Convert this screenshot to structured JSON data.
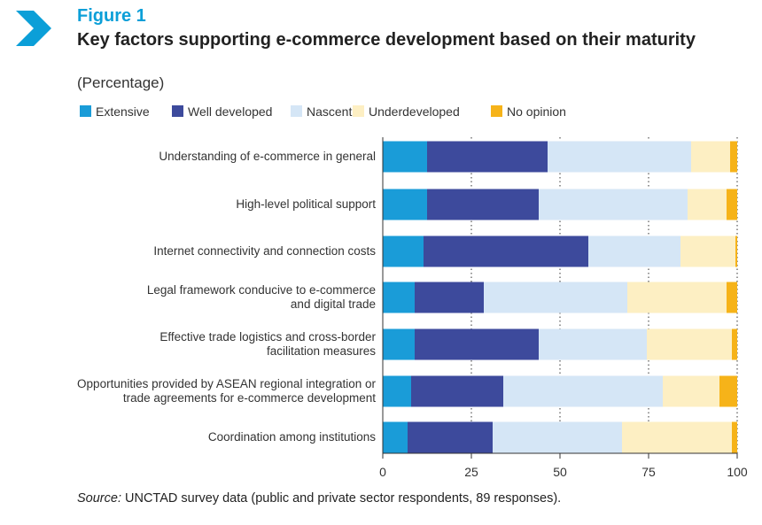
{
  "figure": {
    "label": "Figure 1",
    "title": "Key factors supporting e-commerce development based on their maturity",
    "subtitle": "(Percentage)",
    "source_prefix": "Source:",
    "source_text": " UNCTAD survey data (public and private sector respondents, 89 responses)."
  },
  "colors": {
    "Extensive": "#1a9cd8",
    "Well developed": "#3d4a9c",
    "Nascent": "#d5e6f6",
    "Underdeveloped": "#fdefc3",
    "No opinion": "#f6b319",
    "accent": "#0b9fd8"
  },
  "chart_data": {
    "type": "bar",
    "orientation": "horizontal",
    "stacked": true,
    "title": "Key factors supporting e-commerce development based on their maturity",
    "subtitle": "(Percentage)",
    "xlabel": "",
    "ylabel": "",
    "xlim": [
      0,
      100
    ],
    "xticks": [
      0,
      25,
      50,
      75,
      100
    ],
    "grid": "vertical dotted",
    "legend": "top",
    "categories": [
      "Understanding of e-commerce in general",
      "High-level political support",
      "Internet connectivity and connection costs",
      "Legal framework conducive to e-commerce and digital trade",
      "Effective trade logistics and cross-border facilitation measures",
      "Opportunities provided by ASEAN regional integration or trade agreements for e-commerce development",
      "Coordination among institutions"
    ],
    "category_lines": [
      [
        "Understanding of e-commerce in general"
      ],
      [
        "High-level political support"
      ],
      [
        "Internet connectivity and connection costs"
      ],
      [
        "Legal framework conducive to e-commerce",
        "and digital trade"
      ],
      [
        "Effective trade logistics and cross-border",
        "facilitation measures"
      ],
      [
        "Opportunities provided by ASEAN regional integration or",
        "trade agreements for e-commerce development"
      ],
      [
        "Coordination among institutions"
      ]
    ],
    "series": [
      {
        "name": "Extensive",
        "values": [
          12.5,
          12.5,
          11.5,
          9,
          9,
          8,
          7
        ]
      },
      {
        "name": "Well developed",
        "values": [
          34,
          31.5,
          46.5,
          19.5,
          35,
          26,
          24
        ]
      },
      {
        "name": "Nascent",
        "values": [
          40.5,
          42,
          26,
          40.5,
          30.5,
          45,
          36.5
        ]
      },
      {
        "name": "Underdeveloped",
        "values": [
          11,
          11,
          15.5,
          28,
          24,
          16,
          31
        ]
      },
      {
        "name": "No opinion",
        "values": [
          2,
          3,
          0.5,
          3,
          1.5,
          5,
          1.5
        ]
      }
    ]
  }
}
